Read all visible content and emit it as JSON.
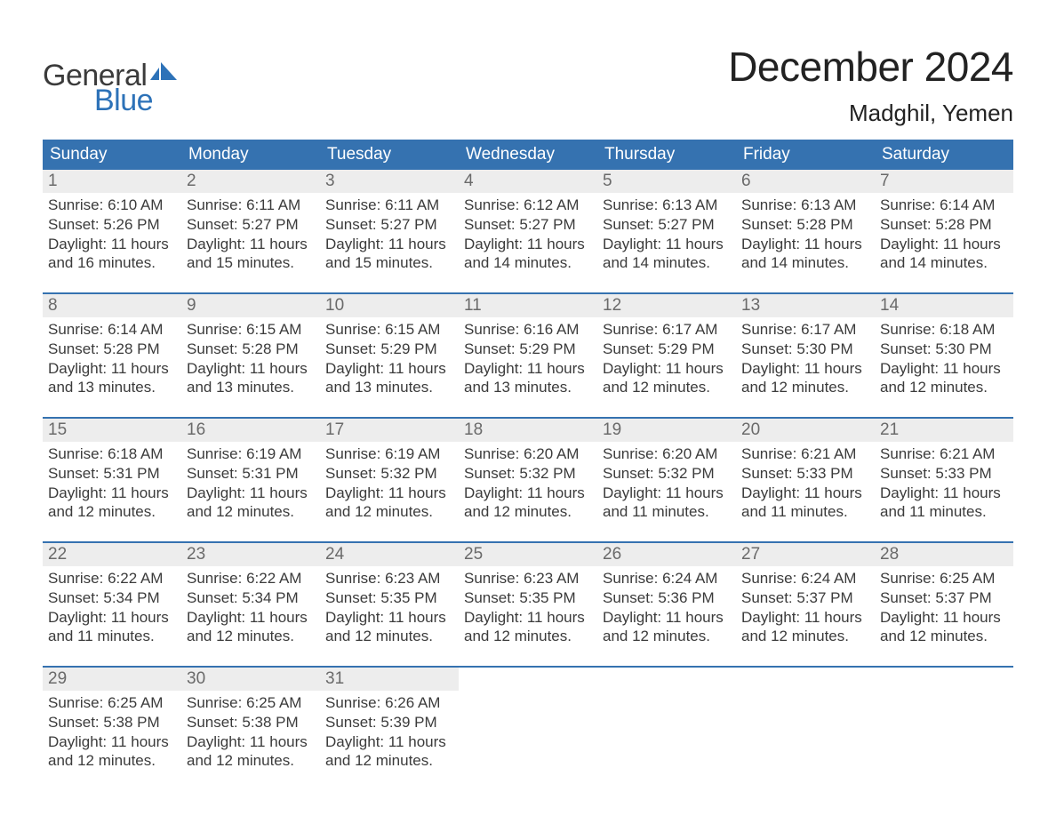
{
  "logo": {
    "text_top": "General",
    "text_bottom": "Blue",
    "flag_color": "#2d72b8"
  },
  "title": "December 2024",
  "location": "Madghil, Yemen",
  "colors": {
    "header_bg": "#3572b0",
    "header_text": "#ffffff",
    "daynum_bg": "#ededed",
    "daynum_text": "#6a6a6a",
    "body_text": "#3b3b3b",
    "week_divider": "#3572b0",
    "page_bg": "#ffffff"
  },
  "typography": {
    "title_fontsize": 46,
    "location_fontsize": 26,
    "weekday_fontsize": 19,
    "daynum_fontsize": 19,
    "body_fontsize": 17
  },
  "weekdays": [
    "Sunday",
    "Monday",
    "Tuesday",
    "Wednesday",
    "Thursday",
    "Friday",
    "Saturday"
  ],
  "first_day_weekday_index": 0,
  "days": [
    {
      "n": 1,
      "sunrise": "6:10 AM",
      "sunset": "5:26 PM",
      "daylight": "11 hours and 16 minutes."
    },
    {
      "n": 2,
      "sunrise": "6:11 AM",
      "sunset": "5:27 PM",
      "daylight": "11 hours and 15 minutes."
    },
    {
      "n": 3,
      "sunrise": "6:11 AM",
      "sunset": "5:27 PM",
      "daylight": "11 hours and 15 minutes."
    },
    {
      "n": 4,
      "sunrise": "6:12 AM",
      "sunset": "5:27 PM",
      "daylight": "11 hours and 14 minutes."
    },
    {
      "n": 5,
      "sunrise": "6:13 AM",
      "sunset": "5:27 PM",
      "daylight": "11 hours and 14 minutes."
    },
    {
      "n": 6,
      "sunrise": "6:13 AM",
      "sunset": "5:28 PM",
      "daylight": "11 hours and 14 minutes."
    },
    {
      "n": 7,
      "sunrise": "6:14 AM",
      "sunset": "5:28 PM",
      "daylight": "11 hours and 14 minutes."
    },
    {
      "n": 8,
      "sunrise": "6:14 AM",
      "sunset": "5:28 PM",
      "daylight": "11 hours and 13 minutes."
    },
    {
      "n": 9,
      "sunrise": "6:15 AM",
      "sunset": "5:28 PM",
      "daylight": "11 hours and 13 minutes."
    },
    {
      "n": 10,
      "sunrise": "6:15 AM",
      "sunset": "5:29 PM",
      "daylight": "11 hours and 13 minutes."
    },
    {
      "n": 11,
      "sunrise": "6:16 AM",
      "sunset": "5:29 PM",
      "daylight": "11 hours and 13 minutes."
    },
    {
      "n": 12,
      "sunrise": "6:17 AM",
      "sunset": "5:29 PM",
      "daylight": "11 hours and 12 minutes."
    },
    {
      "n": 13,
      "sunrise": "6:17 AM",
      "sunset": "5:30 PM",
      "daylight": "11 hours and 12 minutes."
    },
    {
      "n": 14,
      "sunrise": "6:18 AM",
      "sunset": "5:30 PM",
      "daylight": "11 hours and 12 minutes."
    },
    {
      "n": 15,
      "sunrise": "6:18 AM",
      "sunset": "5:31 PM",
      "daylight": "11 hours and 12 minutes."
    },
    {
      "n": 16,
      "sunrise": "6:19 AM",
      "sunset": "5:31 PM",
      "daylight": "11 hours and 12 minutes."
    },
    {
      "n": 17,
      "sunrise": "6:19 AM",
      "sunset": "5:32 PM",
      "daylight": "11 hours and 12 minutes."
    },
    {
      "n": 18,
      "sunrise": "6:20 AM",
      "sunset": "5:32 PM",
      "daylight": "11 hours and 12 minutes."
    },
    {
      "n": 19,
      "sunrise": "6:20 AM",
      "sunset": "5:32 PM",
      "daylight": "11 hours and 11 minutes."
    },
    {
      "n": 20,
      "sunrise": "6:21 AM",
      "sunset": "5:33 PM",
      "daylight": "11 hours and 11 minutes."
    },
    {
      "n": 21,
      "sunrise": "6:21 AM",
      "sunset": "5:33 PM",
      "daylight": "11 hours and 11 minutes."
    },
    {
      "n": 22,
      "sunrise": "6:22 AM",
      "sunset": "5:34 PM",
      "daylight": "11 hours and 11 minutes."
    },
    {
      "n": 23,
      "sunrise": "6:22 AM",
      "sunset": "5:34 PM",
      "daylight": "11 hours and 12 minutes."
    },
    {
      "n": 24,
      "sunrise": "6:23 AM",
      "sunset": "5:35 PM",
      "daylight": "11 hours and 12 minutes."
    },
    {
      "n": 25,
      "sunrise": "6:23 AM",
      "sunset": "5:35 PM",
      "daylight": "11 hours and 12 minutes."
    },
    {
      "n": 26,
      "sunrise": "6:24 AM",
      "sunset": "5:36 PM",
      "daylight": "11 hours and 12 minutes."
    },
    {
      "n": 27,
      "sunrise": "6:24 AM",
      "sunset": "5:37 PM",
      "daylight": "11 hours and 12 minutes."
    },
    {
      "n": 28,
      "sunrise": "6:25 AM",
      "sunset": "5:37 PM",
      "daylight": "11 hours and 12 minutes."
    },
    {
      "n": 29,
      "sunrise": "6:25 AM",
      "sunset": "5:38 PM",
      "daylight": "11 hours and 12 minutes."
    },
    {
      "n": 30,
      "sunrise": "6:25 AM",
      "sunset": "5:38 PM",
      "daylight": "11 hours and 12 minutes."
    },
    {
      "n": 31,
      "sunrise": "6:26 AM",
      "sunset": "5:39 PM",
      "daylight": "11 hours and 12 minutes."
    }
  ],
  "labels": {
    "sunrise": "Sunrise: ",
    "sunset": "Sunset: ",
    "daylight": "Daylight: "
  }
}
